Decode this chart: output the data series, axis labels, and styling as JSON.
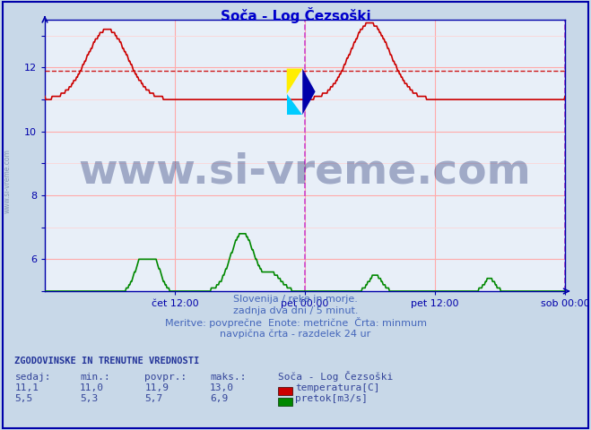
{
  "title": "Soča - Log Čezsoški",
  "title_color": "#0000cc",
  "fig_bg_color": "#c8d8e8",
  "plot_bg_color": "#e8eff8",
  "grid_color": "#ffaaaa",
  "axis_color": "#0000aa",
  "temp_color": "#cc0000",
  "flow_color": "#008800",
  "avg_line_color": "#cc0000",
  "vline_color": "#cc44cc",
  "xlabel_color": "#0000aa",
  "watermark_text": "www.si-vreme.com",
  "watermark_size": 34,
  "watermark_color": "#1a2a6e",
  "x_ticks_labels": [
    "čet 12:00",
    "pet 00:00",
    "pet 12:00",
    "sob 00:00"
  ],
  "y_min": 5.0,
  "y_max": 13.5,
  "y_ticks": [
    6,
    8,
    10,
    12
  ],
  "temp_avg": 11.9,
  "n_points": 576,
  "footer_line1": "Slovenija / reke in morje.",
  "footer_line2": "zadnja dva dni / 5 minut.",
  "footer_line3": "Meritve: povprečne  Enote: metrične  Črta: minmum",
  "footer_line4": "navpična črta - razdelek 24 ur",
  "footer_color": "#4466bb",
  "table_header": "ZGODOVINSKE IN TRENUTNE VREDNOSTI",
  "table_header_color": "#223399",
  "col_labels": [
    "sedaj:",
    "min.:",
    "povpr.:",
    "maks.:",
    "Soča - Log Čezsoški"
  ],
  "temp_row": [
    "11,1",
    "11,0",
    "11,9",
    "13,0"
  ],
  "flow_row": [
    "5,5",
    "5,3",
    "5,7",
    "6,9"
  ],
  "temp_legend": "temperatura[C]",
  "flow_legend": "pretok[m3/s]",
  "table_data_color": "#334499",
  "sidebar_text": "www.si-vreme.com",
  "sidebar_color": "#7788aa"
}
